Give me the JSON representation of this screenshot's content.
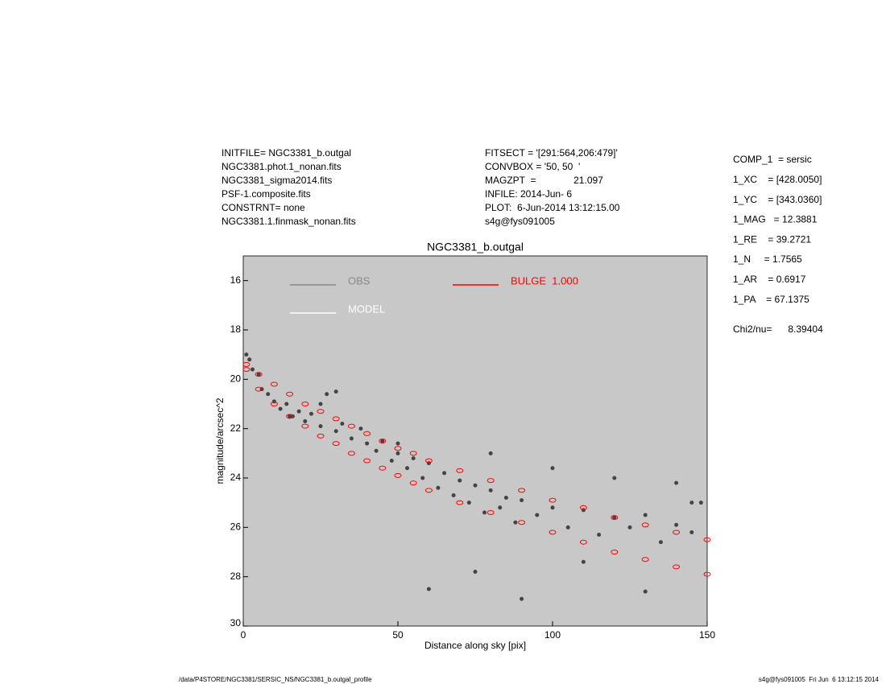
{
  "header": {
    "left": [
      "INITFILE= NGC3381_b.outgal",
      "NGC3381.phot.1_nonan.fits",
      "NGC3381_sigma2014.fits",
      "PSF-1.composite.fits",
      "CONSTRNT= none",
      "NGC3381.1.finmask_nonan.fits"
    ],
    "middle": [
      "FITSECT = '[291:564,206:479]'",
      "CONVBOX = '50, 50  '",
      "MAGZPT  =              21.097",
      "INFILE: 2014-Jun- 6",
      "PLOT:  6-Jun-2014 13:12:15.00",
      "s4g@fys091005"
    ],
    "params": [
      "COMP_1  = sersic",
      "1_XC    = [428.0050]",
      "1_YC    = [343.0360]",
      "1_MAG   = 12.3881",
      "1_RE    = 39.2721",
      "1_N     = 1.7565",
      "1_AR    = 0.6917",
      "1_PA    = 67.1375"
    ],
    "chi2": "Chi2/nu=      8.39404"
  },
  "footer": {
    "left": "/data/P4STORE/NGC3381/SERSIC_NS/NGC3381_b.outgal_profile",
    "right": "s4g@fys091005  Fri Jun  6 13:12:15 2014"
  },
  "chart_data": {
    "type": "scatter",
    "title": "NGC3381_b.outgal",
    "x_label": "Distance along sky [pix]",
    "y_label": "magnitude/arcsec^2",
    "xlim": [
      0,
      150
    ],
    "xticks": [
      0,
      50,
      100,
      150
    ],
    "ylim": [
      15,
      30
    ],
    "yticks": [
      16,
      18,
      20,
      22,
      24,
      26,
      28,
      30
    ],
    "y_inverted": true,
    "background": "#c8c8c8",
    "series": [
      {
        "name": "OBS",
        "color": "#444444",
        "legend_color": "#888888",
        "x": [
          1,
          2,
          3,
          5,
          6,
          8,
          10,
          12,
          14,
          16,
          18,
          20,
          22,
          25,
          27,
          30,
          32,
          35,
          38,
          40,
          43,
          45,
          48,
          50,
          53,
          55,
          58,
          60,
          63,
          65,
          68,
          70,
          73,
          75,
          78,
          80,
          83,
          85,
          88,
          90,
          95,
          100,
          105,
          110,
          115,
          120,
          125,
          130,
          135,
          140,
          145,
          148,
          60,
          75,
          90,
          110,
          130,
          145,
          140,
          120,
          100,
          80,
          50,
          30,
          25,
          15
        ],
        "values": [
          19.0,
          19.2,
          19.6,
          19.8,
          20.4,
          20.6,
          20.9,
          21.2,
          21.0,
          21.5,
          21.3,
          21.7,
          21.4,
          21.9,
          20.6,
          22.1,
          21.8,
          22.4,
          22.0,
          22.6,
          22.9,
          22.5,
          23.3,
          23.0,
          23.6,
          23.2,
          24.0,
          23.4,
          24.4,
          23.8,
          24.7,
          24.1,
          25.0,
          24.3,
          25.4,
          24.5,
          25.2,
          24.8,
          25.8,
          24.9,
          25.5,
          25.2,
          26.0,
          25.3,
          26.3,
          25.6,
          26.0,
          25.5,
          26.6,
          25.9,
          26.2,
          25.0,
          28.5,
          27.8,
          28.9,
          27.4,
          28.6,
          25.0,
          24.2,
          24.0,
          23.6,
          23.0,
          22.6,
          20.5,
          21.0,
          21.5
        ]
      },
      {
        "name": "MODEL",
        "color": "#ffffff",
        "x": [],
        "values": []
      },
      {
        "name": "BULGE  1.000",
        "color": "#ff0000",
        "x": [
          1,
          5,
          10,
          15,
          20,
          25,
          30,
          35,
          40,
          45,
          50,
          55,
          60,
          70,
          80,
          90,
          100,
          110,
          120,
          130,
          140,
          150,
          1,
          5,
          10,
          15,
          20,
          25,
          30,
          35,
          40,
          45,
          50,
          55,
          60,
          70,
          80,
          90,
          100,
          110,
          120,
          130,
          140,
          150
        ],
        "values": [
          19.4,
          19.8,
          20.2,
          20.6,
          21.0,
          21.3,
          21.6,
          21.9,
          22.2,
          22.5,
          22.8,
          23.0,
          23.3,
          23.7,
          24.1,
          24.5,
          24.9,
          25.2,
          25.6,
          25.9,
          26.2,
          26.5,
          19.6,
          20.4,
          21.0,
          21.5,
          21.9,
          22.3,
          22.6,
          23.0,
          23.3,
          23.6,
          23.9,
          24.2,
          24.5,
          25.0,
          25.4,
          25.8,
          26.2,
          26.6,
          27.0,
          27.3,
          27.6,
          27.9
        ]
      }
    ]
  }
}
